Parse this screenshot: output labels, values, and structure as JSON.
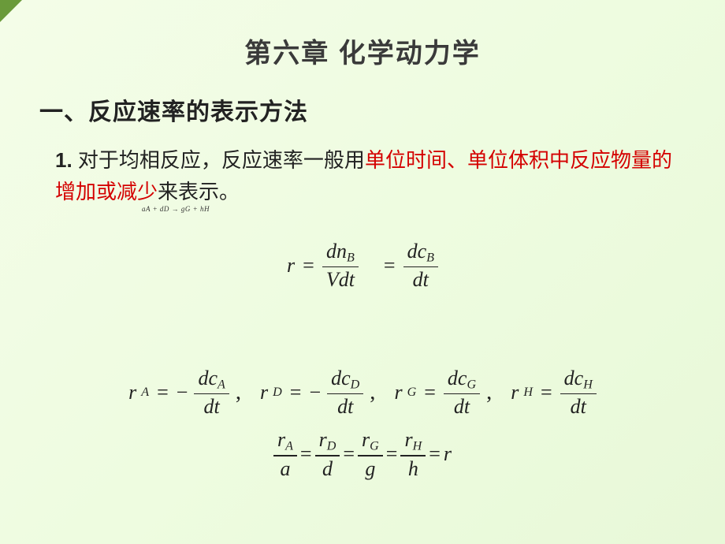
{
  "colors": {
    "bg_gradient_start": "#f4fde8",
    "bg_gradient_end": "#e8f8d8",
    "accent_corner": "#6a9a3a",
    "text_primary": "#222222",
    "text_red": "#d40000"
  },
  "typography": {
    "title_fontsize": 34,
    "section_fontsize": 30,
    "body_fontsize": 26,
    "math_fontsize": 26,
    "tiny_fontsize": 9,
    "font_body": "Microsoft YaHei",
    "font_math": "Times New Roman"
  },
  "chapter_title": "第六章  化学动力学",
  "section_title": "一、反应速率的表示方法",
  "body": {
    "prefix": "1. ",
    "part1": "对于均相反应，反应速率一般用",
    "red1": "单位时间、单位体积中反应物量的增加或减少",
    "part2": "来表示。"
  },
  "tiny_equation": "aA + dD → gG + hH",
  "eq1": {
    "lhs": "r",
    "frac1_num_d": "dn",
    "frac1_num_sub": "B",
    "frac1_den": "Vdt",
    "frac2_num_d": "dc",
    "frac2_num_sub": "B",
    "frac2_den": "dt"
  },
  "eq2": {
    "terms": [
      {
        "r_sub": "A",
        "sign": "−",
        "c_sub": "A"
      },
      {
        "r_sub": "D",
        "sign": "−",
        "c_sub": "D"
      },
      {
        "r_sub": "G",
        "sign": "",
        "c_sub": "G"
      },
      {
        "r_sub": "H",
        "sign": "",
        "c_sub": "H"
      }
    ],
    "dc_prefix": "dc",
    "denom": "dt"
  },
  "eq3": {
    "pairs": [
      {
        "num_sub": "A",
        "den": "a"
      },
      {
        "num_sub": "D",
        "den": "d"
      },
      {
        "num_sub": "G",
        "den": "g"
      },
      {
        "num_sub": "H",
        "den": "h"
      }
    ],
    "r_sym": "r",
    "tail": "r"
  }
}
